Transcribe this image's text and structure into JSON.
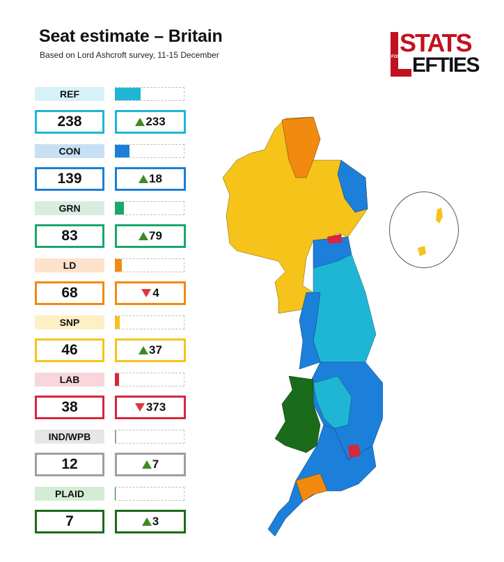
{
  "header": {
    "title": "Seat estimate – Britain",
    "subtitle": "Based on Lord Ashcroft survey, 11-15 December"
  },
  "logo": {
    "stats": "STATS",
    "for": "FOR",
    "lefties": "EFTIES"
  },
  "chart_data": {
    "type": "bar",
    "categories": [
      "REF",
      "CON",
      "GRN",
      "LD",
      "SNP",
      "LAB",
      "IND/WPB",
      "PLAID"
    ],
    "values": [
      238,
      139,
      83,
      68,
      46,
      38,
      12,
      7
    ],
    "changes": [
      "233",
      "18",
      "79",
      "4",
      "37",
      "373",
      "7",
      "3"
    ],
    "change_direction": [
      "up",
      "up",
      "up",
      "down",
      "up",
      "down",
      "up",
      "up"
    ],
    "colors": [
      "#1fb6d6",
      "#1c7fd9",
      "#1aa76a",
      "#f28a10",
      "#f5c31a",
      "#d7263d",
      "#9e9e9e",
      "#1a6b1a"
    ],
    "label_backgrounds": [
      "#d6f1f8",
      "#c7e0f4",
      "#d9ece0",
      "#fde3cc",
      "#fdf0c4",
      "#f8d6dc",
      "#e6e6e6",
      "#d4ecd4"
    ],
    "title": "Seat estimate – Britain",
    "ylim": [
      0,
      650
    ]
  }
}
